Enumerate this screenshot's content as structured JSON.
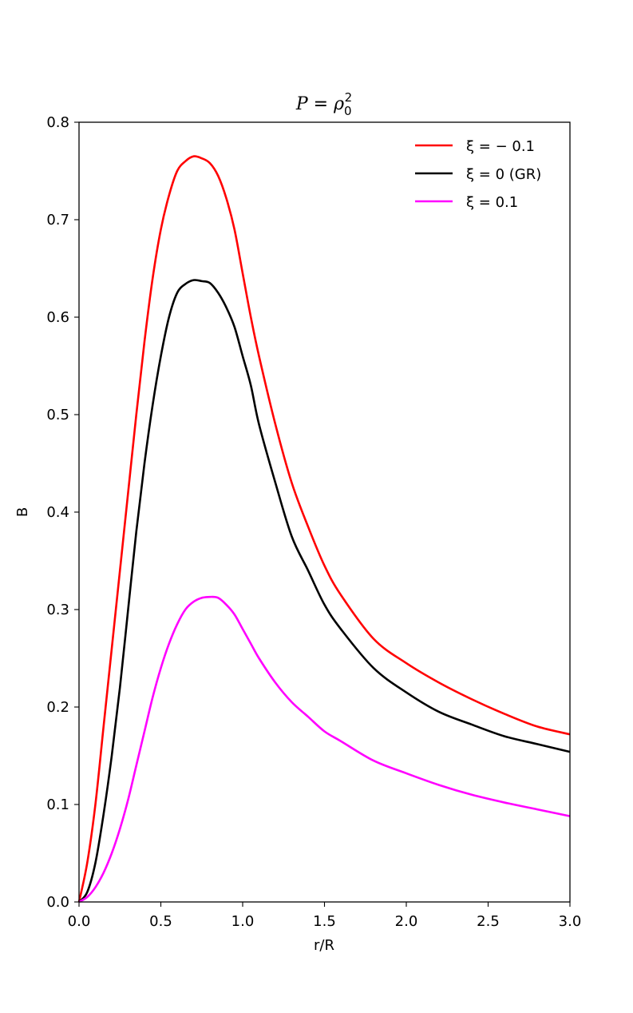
{
  "chart_data": {
    "type": "line",
    "title": {
      "var": "P",
      "equals": " = ",
      "rho": "ρ",
      "sub": "0",
      "sup": "2"
    },
    "xlabel": "r/R",
    "ylabel": "B",
    "xlim": [
      0,
      3
    ],
    "ylim": [
      0,
      0.8
    ],
    "xticks": [
      0,
      0.5,
      1.0,
      1.5,
      2.0,
      2.5,
      3.0
    ],
    "xtick_labels": [
      "0.0",
      "0.5",
      "1.0",
      "1.5",
      "2.0",
      "2.5",
      "3.0"
    ],
    "yticks": [
      0,
      0.1,
      0.2,
      0.3,
      0.4,
      0.5,
      0.6,
      0.7,
      0.8
    ],
    "ytick_labels": [
      "0.0",
      "0.1",
      "0.2",
      "0.3",
      "0.4",
      "0.5",
      "0.6",
      "0.7",
      "0.8"
    ],
    "grid": false,
    "legend_position": "top-right",
    "series": [
      {
        "name": "ξ = − 0.1",
        "color": "#ff0000",
        "points": [
          [
            0,
            0
          ],
          [
            0.05,
            0.04
          ],
          [
            0.1,
            0.1
          ],
          [
            0.15,
            0.18
          ],
          [
            0.2,
            0.26
          ],
          [
            0.25,
            0.34
          ],
          [
            0.3,
            0.42
          ],
          [
            0.35,
            0.5
          ],
          [
            0.4,
            0.575
          ],
          [
            0.45,
            0.64
          ],
          [
            0.5,
            0.69
          ],
          [
            0.55,
            0.725
          ],
          [
            0.6,
            0.75
          ],
          [
            0.65,
            0.76
          ],
          [
            0.7,
            0.765
          ],
          [
            0.75,
            0.763
          ],
          [
            0.8,
            0.758
          ],
          [
            0.85,
            0.745
          ],
          [
            0.9,
            0.722
          ],
          [
            0.95,
            0.69
          ],
          [
            1.0,
            0.645
          ],
          [
            1.05,
            0.6
          ],
          [
            1.1,
            0.56
          ],
          [
            1.2,
            0.49
          ],
          [
            1.3,
            0.43
          ],
          [
            1.4,
            0.385
          ],
          [
            1.5,
            0.345
          ],
          [
            1.6,
            0.315
          ],
          [
            1.8,
            0.27
          ],
          [
            2.0,
            0.245
          ],
          [
            2.2,
            0.225
          ],
          [
            2.4,
            0.208
          ],
          [
            2.6,
            0.193
          ],
          [
            2.8,
            0.18
          ],
          [
            3.0,
            0.172
          ]
        ]
      },
      {
        "name": "ξ = 0 (GR)",
        "color": "#000000",
        "points": [
          [
            0,
            0
          ],
          [
            0.05,
            0.01
          ],
          [
            0.1,
            0.04
          ],
          [
            0.15,
            0.09
          ],
          [
            0.2,
            0.15
          ],
          [
            0.25,
            0.22
          ],
          [
            0.3,
            0.3
          ],
          [
            0.35,
            0.38
          ],
          [
            0.4,
            0.45
          ],
          [
            0.45,
            0.51
          ],
          [
            0.5,
            0.56
          ],
          [
            0.55,
            0.6
          ],
          [
            0.6,
            0.625
          ],
          [
            0.65,
            0.634
          ],
          [
            0.7,
            0.638
          ],
          [
            0.75,
            0.637
          ],
          [
            0.8,
            0.635
          ],
          [
            0.85,
            0.625
          ],
          [
            0.9,
            0.61
          ],
          [
            0.95,
            0.59
          ],
          [
            1.0,
            0.56
          ],
          [
            1.05,
            0.53
          ],
          [
            1.1,
            0.49
          ],
          [
            1.2,
            0.43
          ],
          [
            1.3,
            0.375
          ],
          [
            1.4,
            0.34
          ],
          [
            1.5,
            0.305
          ],
          [
            1.6,
            0.28
          ],
          [
            1.8,
            0.24
          ],
          [
            2.0,
            0.215
          ],
          [
            2.2,
            0.195
          ],
          [
            2.4,
            0.182
          ],
          [
            2.6,
            0.17
          ],
          [
            2.8,
            0.162
          ],
          [
            3.0,
            0.154
          ]
        ]
      },
      {
        "name": "ξ = 0.1",
        "color": "#ff00ff",
        "points": [
          [
            0,
            0
          ],
          [
            0.05,
            0.005
          ],
          [
            0.1,
            0.015
          ],
          [
            0.15,
            0.03
          ],
          [
            0.2,
            0.05
          ],
          [
            0.25,
            0.075
          ],
          [
            0.3,
            0.105
          ],
          [
            0.35,
            0.14
          ],
          [
            0.4,
            0.175
          ],
          [
            0.45,
            0.21
          ],
          [
            0.5,
            0.24
          ],
          [
            0.55,
            0.265
          ],
          [
            0.6,
            0.285
          ],
          [
            0.65,
            0.3
          ],
          [
            0.7,
            0.308
          ],
          [
            0.75,
            0.312
          ],
          [
            0.8,
            0.313
          ],
          [
            0.85,
            0.312
          ],
          [
            0.9,
            0.305
          ],
          [
            0.95,
            0.295
          ],
          [
            1.0,
            0.28
          ],
          [
            1.05,
            0.265
          ],
          [
            1.1,
            0.25
          ],
          [
            1.2,
            0.225
          ],
          [
            1.3,
            0.205
          ],
          [
            1.4,
            0.19
          ],
          [
            1.5,
            0.175
          ],
          [
            1.6,
            0.165
          ],
          [
            1.8,
            0.145
          ],
          [
            2.0,
            0.132
          ],
          [
            2.2,
            0.12
          ],
          [
            2.4,
            0.11
          ],
          [
            2.6,
            0.102
          ],
          [
            2.8,
            0.095
          ],
          [
            3.0,
            0.088
          ]
        ]
      }
    ]
  }
}
